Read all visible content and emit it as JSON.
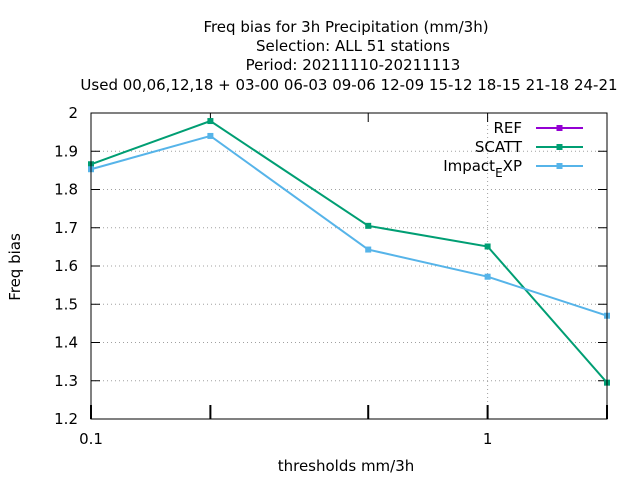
{
  "chart_data": {
    "type": "line",
    "title_lines": [
      "Freq bias  for 3h Precipitation (mm/3h)",
      "Selection: ALL      51 stations",
      "Period: 20211110-20211113",
      "Used  00,06,12,18  + 03-00 06-03 09-06 12-09 15-12 18-15 21-18 24-21"
    ],
    "xlabel": "thresholds mm/3h",
    "ylabel": "Freq bias",
    "x_scale": "log",
    "xlim": [
      0.1,
      2
    ],
    "ylim": [
      1.2,
      2.0
    ],
    "x_ticks": [
      0.1,
      0.2,
      0.5,
      1,
      2
    ],
    "x_tick_labels": [
      {
        "value": 0.1,
        "label": "0.1"
      },
      {
        "value": 1,
        "label": "1"
      }
    ],
    "y_ticks": [
      "1.2",
      "1.3",
      "1.4",
      "1.5",
      "1.6",
      "1.7",
      "1.8",
      "1.9",
      "2"
    ],
    "grid": true,
    "legend_position": "top-right",
    "series": [
      {
        "name": "REF",
        "color": "#9400d3",
        "marker": "square",
        "x": [],
        "y": []
      },
      {
        "name": "SCATT",
        "color": "#009e73",
        "marker": "square",
        "x": [
          0.1,
          0.2,
          0.5,
          1,
          2
        ],
        "y": [
          1.866,
          1.979,
          1.705,
          1.651,
          1.295
        ]
      },
      {
        "name": "Impact_EXP",
        "legend_main": "Impact",
        "legend_sub": "E",
        "legend_rest": "XP",
        "color": "#56b4e9",
        "marker": "square",
        "x": [
          0.1,
          0.2,
          0.5,
          1,
          2
        ],
        "y": [
          1.853,
          1.94,
          1.643,
          1.572,
          1.47
        ]
      }
    ]
  }
}
